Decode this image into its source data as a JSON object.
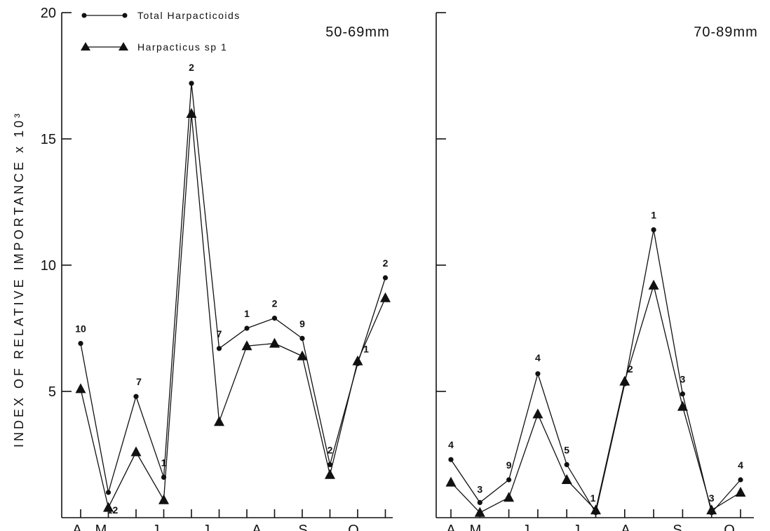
{
  "figure": {
    "ylabel": "INDEX OF RELATIVE IMPORTANCE x 10³"
  },
  "legend": [
    {
      "label": "Total Harpacticoids",
      "marker": "circle"
    },
    {
      "label": "Harpacticus sp 1",
      "marker": "triangle"
    }
  ],
  "chart_data": [
    {
      "type": "line",
      "title": "50-69mm",
      "ylabel": "INDEX OF RELATIVE IMPORTANCE x 10³",
      "ylim": [
        0,
        20
      ],
      "yticks": [
        5,
        10,
        15,
        20
      ],
      "month_labels": [
        "A",
        "M",
        "J",
        "J",
        "A",
        "S",
        "O"
      ],
      "x": [
        1,
        2,
        3,
        4,
        5,
        6,
        7,
        8,
        9,
        10,
        11,
        12
      ],
      "series": [
        {
          "name": "Total Harpacticoids",
          "marker": "circle",
          "values": [
            6.9,
            1.0,
            4.8,
            1.6,
            17.2,
            6.7,
            7.5,
            7.9,
            7.1,
            2.1,
            6.1,
            9.5
          ]
        },
        {
          "name": "Harpacticus sp 1",
          "marker": "triangle",
          "values": [
            5.1,
            0.4,
            2.6,
            0.7,
            16.0,
            3.8,
            6.8,
            6.9,
            6.4,
            1.7,
            6.2,
            8.7
          ]
        }
      ],
      "annotations": [
        {
          "x": 1,
          "text": "10"
        },
        {
          "x": 2,
          "text": "12"
        },
        {
          "x": 3,
          "text": "7"
        },
        {
          "x": 4,
          "text": "1"
        },
        {
          "x": 5,
          "text": "2"
        },
        {
          "x": 6,
          "text": "7"
        },
        {
          "x": 7,
          "text": "1"
        },
        {
          "x": 8,
          "text": "2"
        },
        {
          "x": 9,
          "text": "9"
        },
        {
          "x": 10,
          "text": "2"
        },
        {
          "x": 11,
          "text": "1"
        },
        {
          "x": 12,
          "text": "2"
        }
      ]
    },
    {
      "type": "line",
      "title": "70-89mm",
      "ylim": [
        0,
        20
      ],
      "yticks": [
        5,
        10,
        15,
        20
      ],
      "month_labels": [
        "A",
        "M",
        "J",
        "J",
        "A",
        "S",
        "O"
      ],
      "x": [
        1,
        2,
        3,
        4,
        5,
        6,
        7,
        8,
        9,
        10,
        11
      ],
      "series": [
        {
          "name": "Total Harpacticoids",
          "marker": "circle",
          "values": [
            2.3,
            0.6,
            1.5,
            5.7,
            2.1,
            0.2,
            5.3,
            11.4,
            4.9,
            0.2,
            1.5
          ]
        },
        {
          "name": "Harpacticus sp 1",
          "marker": "triangle",
          "values": [
            1.4,
            0.2,
            0.8,
            4.1,
            1.5,
            0.3,
            5.4,
            9.2,
            4.4,
            0.3,
            1.0
          ]
        }
      ],
      "annotations": [
        {
          "x": 1,
          "text": "4"
        },
        {
          "x": 2,
          "text": "3"
        },
        {
          "x": 3,
          "text": "9"
        },
        {
          "x": 4,
          "text": "4"
        },
        {
          "x": 5,
          "text": "5"
        },
        {
          "x": 6,
          "text": "1"
        },
        {
          "x": 7,
          "text": "2"
        },
        {
          "x": 8,
          "text": "1"
        },
        {
          "x": 9,
          "text": "3"
        },
        {
          "x": 10,
          "text": "3"
        },
        {
          "x": 11,
          "text": "4"
        }
      ]
    }
  ]
}
